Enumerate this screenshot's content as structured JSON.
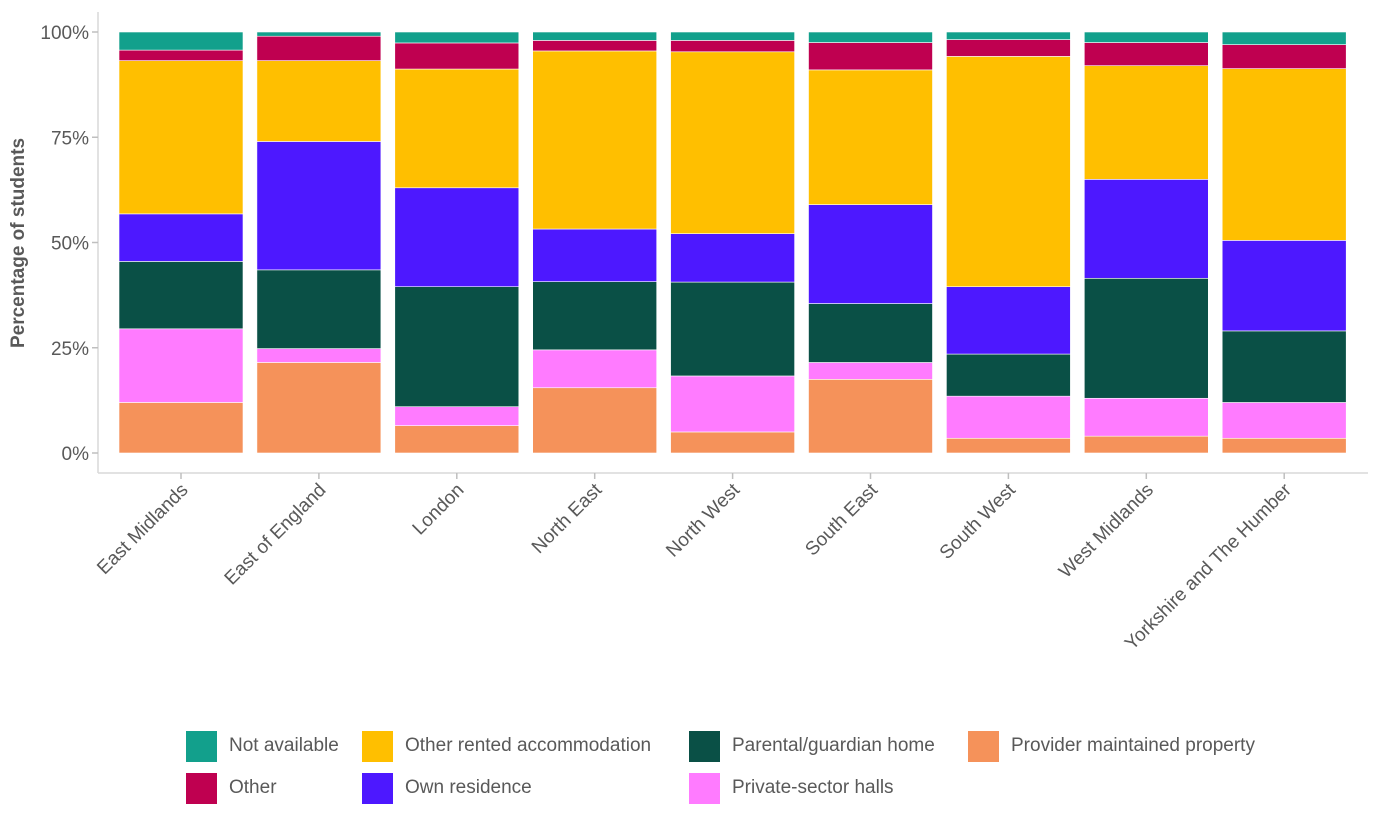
{
  "chart_data": {
    "type": "bar",
    "stacked": true,
    "orientation": "vertical",
    "ylabel": "Percentage of students",
    "xlabel": "",
    "ylim": [
      0,
      100
    ],
    "yticks": [
      {
        "value": 0,
        "label": "0%"
      },
      {
        "value": 25,
        "label": "25%"
      },
      {
        "value": 50,
        "label": "50%"
      },
      {
        "value": 75,
        "label": "75%"
      },
      {
        "value": 100,
        "label": "100%"
      }
    ],
    "grid": false,
    "legend_position": "bottom",
    "categories": [
      "East Midlands",
      "East of England",
      "London",
      "North East",
      "North West",
      "South East",
      "South West",
      "West Midlands",
      "Yorkshire and The Humber"
    ],
    "series": [
      {
        "name": "Provider maintained property",
        "color": "#F5925A",
        "values": [
          12,
          21.5,
          6.5,
          15.5,
          5,
          17.5,
          3.5,
          4,
          3.5
        ]
      },
      {
        "name": "Private-sector halls",
        "color": "#FF7BFF",
        "values": [
          17.5,
          3.3,
          4.5,
          9,
          13.3,
          4,
          10,
          9,
          8.5
        ]
      },
      {
        "name": "Parental/guardian home",
        "color": "#0A5046",
        "values": [
          16,
          18.7,
          28.5,
          16.2,
          22.3,
          14,
          10,
          28.5,
          17
        ]
      },
      {
        "name": "Own residence",
        "color": "#4D18FF",
        "values": [
          11.3,
          30.5,
          23.5,
          12.5,
          11.5,
          23.5,
          16,
          23.5,
          21.5
        ]
      },
      {
        "name": "Other rented accommodation",
        "color": "#FFBF00",
        "values": [
          36.4,
          19.2,
          28.2,
          42.3,
          43.2,
          32,
          54.7,
          27,
          40.8
        ]
      },
      {
        "name": "Other",
        "color": "#BF0050",
        "values": [
          2.5,
          5.8,
          6.2,
          2.5,
          2.7,
          6.5,
          4,
          5.5,
          5.7
        ]
      },
      {
        "name": "Not available",
        "color": "#12A08C",
        "values": [
          4.3,
          1,
          2.6,
          2,
          2,
          2.5,
          1.8,
          2.5,
          3
        ]
      }
    ],
    "legend_order": [
      "Not available",
      "Other rented accommodation",
      "Parental/guardian home",
      "Provider maintained property",
      "Other",
      "Own residence",
      "Private-sector halls"
    ]
  }
}
